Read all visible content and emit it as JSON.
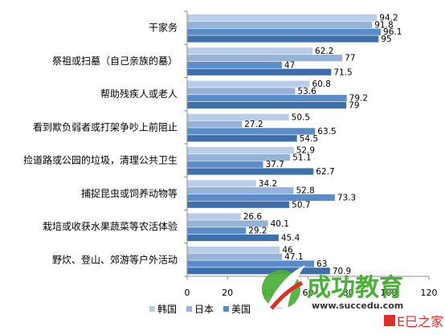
{
  "chart_data": {
    "type": "bar",
    "orientation": "horizontal",
    "title": "",
    "xlabel": "",
    "ylabel": "",
    "xlim": [
      0,
      120
    ],
    "x_ticks": [
      "0",
      "20",
      "40",
      "60",
      "80",
      "100",
      "120"
    ],
    "grid": false,
    "legend_position": "bottom",
    "categories": [
      "干家务",
      "祭祖或扫墓（自己亲族的墓）",
      "帮助残疾人或老人",
      "看到欺负弱者或打架争吵上前阻止",
      "捡道路或公园的垃圾，清理公共卫生",
      "捕捉昆虫或饲养动物等",
      "栽培或收获水果蔬菜等农活体验",
      "野炊、登山、郊游等户外活动"
    ],
    "series": [
      {
        "name": "韩国",
        "color": "#b9cde8",
        "values": [
          94.2,
          62.2,
          60.8,
          50.5,
          52.9,
          34.2,
          26.6,
          46
        ]
      },
      {
        "name": "日本",
        "color": "#95b3d7",
        "values": [
          91.8,
          77,
          53.6,
          27.2,
          51.1,
          52.8,
          40.1,
          47.1
        ]
      },
      {
        "name": "美国",
        "color": "#5b8cc8",
        "values": [
          96.1,
          47,
          79.2,
          63.5,
          37.7,
          73.3,
          29.2,
          63
        ]
      },
      {
        "name": "",
        "color": "#3f6fa8",
        "values": [
          95,
          71.5,
          79,
          54.5,
          62.7,
          50.7,
          45.4,
          70.9
        ]
      }
    ]
  },
  "watermark": {
    "brand": "成功教育",
    "url": "www.succedu.com",
    "corner": "E巳之家",
    "colors": {
      "green": "#4caf3a",
      "red": "#d9302c",
      "dark": "#333333"
    }
  }
}
